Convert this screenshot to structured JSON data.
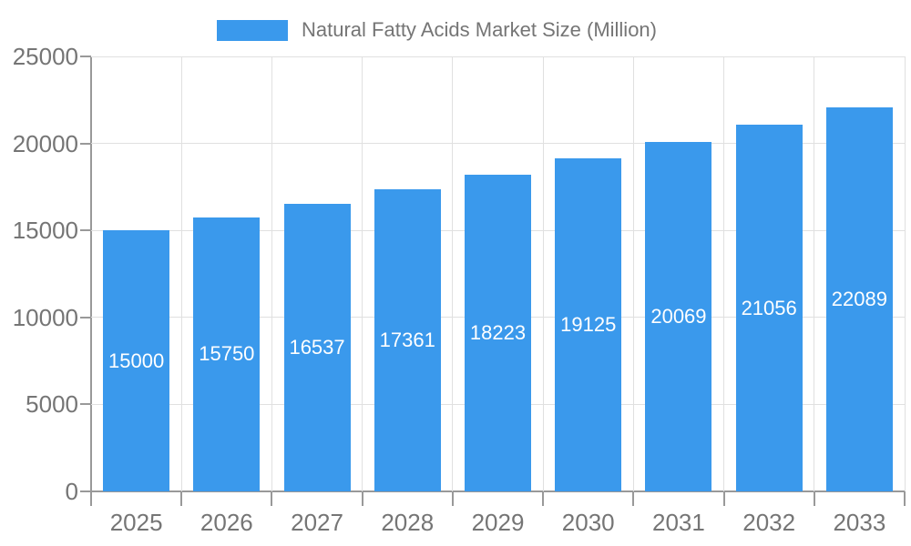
{
  "chart_data": {
    "type": "bar",
    "series_name": "Natural Fatty Acids Market Size (Million)",
    "categories": [
      "2025",
      "2026",
      "2027",
      "2028",
      "2029",
      "2030",
      "2031",
      "2032",
      "2033"
    ],
    "values": [
      15000,
      15750,
      16537,
      17361,
      18223,
      19125,
      20069,
      21056,
      22089
    ],
    "ylim": [
      0,
      25000
    ],
    "yticks": [
      0,
      5000,
      10000,
      15000,
      20000,
      25000
    ],
    "legend_position": "top-center",
    "grid": true,
    "bar_labels_inside": true,
    "colors": {
      "bar": "#3A99EC",
      "bar_label": "#FFFFFF",
      "axis_text": "#757575",
      "grid_line": "#E0E0E0",
      "axis_line": "#999999",
      "background": "#FFFFFF"
    }
  }
}
